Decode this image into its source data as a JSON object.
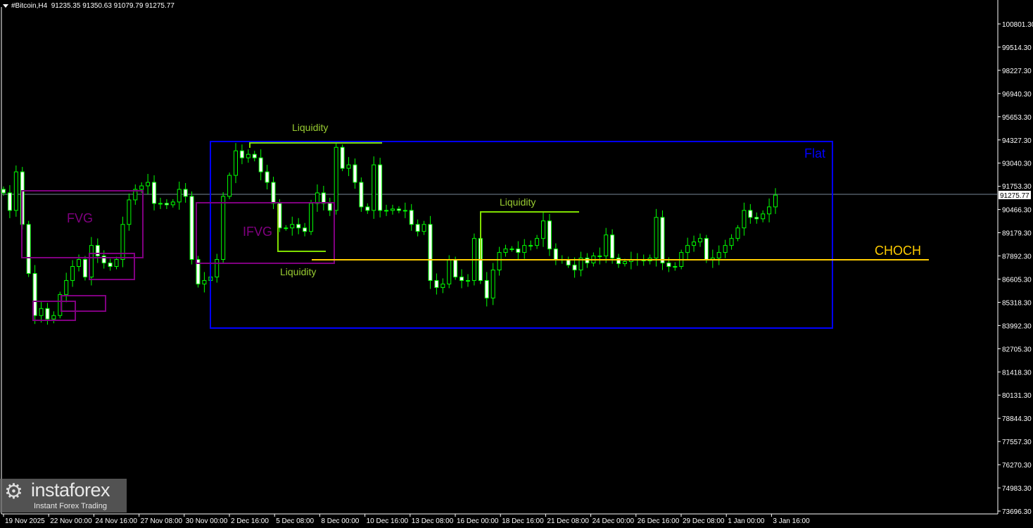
{
  "header": {
    "symbol": "#Bitcoin,H4",
    "ohlc": "91235.35 91350.63 91079.79 91275.77"
  },
  "logo": {
    "name": "instaforex",
    "tagline": "Instant Forex Trading"
  },
  "colors": {
    "background": "#000000",
    "candle": "#00ff00",
    "flat_box": "#0000ff",
    "fvg": "#800080",
    "liquidity": "#7fdf00",
    "choch": "#ffcc00",
    "price_line": "#778899",
    "axis": "#ffffff"
  },
  "annotations": {
    "flat": "Flat",
    "fvg": "FVG",
    "ifvg": "IFVG",
    "choch": "CHOCH",
    "liquidity_top": "Liquidity",
    "liquidity_low": "Liquidity",
    "liquidity_mid": "Liquidity"
  },
  "chart_data": {
    "type": "candlestick",
    "title": "#Bitcoin,H4",
    "timeframe": "H4",
    "last_price": "91275.77",
    "ylim": [
      73696.3,
      100801.3
    ],
    "grid": false,
    "y_ticks": [
      "100801.30",
      "99514.30",
      "98227.30",
      "96940.30",
      "95653.30",
      "94327.30",
      "93040.30",
      "91753.30",
      "90466.30",
      "89179.30",
      "87892.30",
      "86605.30",
      "85318.30",
      "83992.30",
      "82705.30",
      "81418.30",
      "80131.30",
      "78844.30",
      "77557.30",
      "76270.30",
      "74983.30",
      "73696.30"
    ],
    "x_ticks": [
      "19 Nov 2025",
      "22 Nov 00:00",
      "24 Nov 16:00",
      "27 Nov 08:00",
      "30 Nov 00:00",
      "2 Dec 16:00",
      "5 Dec 08:00",
      "8 Dec 00:00",
      "10 Dec 16:00",
      "13 Dec 08:00",
      "16 Dec 00:00",
      "18 Dec 16:00",
      "21 Dec 08:00",
      "24 Dec 00:00",
      "26 Dec 16:00",
      "29 Dec 08:00",
      "1 Jan 00:00",
      "3 Jan 16:00"
    ],
    "open": 91600,
    "closes": [
      91402,
      90427,
      92572,
      89647,
      86917,
      84577,
      84967,
      84382,
      84577,
      85747,
      86527,
      87307,
      87697,
      86722,
      88477,
      87892,
      87502,
      87307,
      87697,
      89647,
      91012,
      91597,
      91792,
      91987,
      90817,
      90817,
      90739,
      90895,
      91597,
      91207,
      87697,
      86332,
      86527,
      86722,
      87697,
      91207,
      92377,
      93742,
      93352,
      93547,
      93352,
      92572,
      91987,
      90817,
      89452,
      89452,
      89647,
      89452,
      89257,
      90817,
      91402,
      90817,
      90427,
      93937,
      92767,
      92962,
      91987,
      90622,
      90427,
      92962,
      90427,
      90427,
      90505,
      90427,
      90427,
      89647,
      89257,
      89647,
      86527,
      86137,
      86332,
      87697,
      86722,
      86527,
      86527,
      88867,
      86527,
      85552,
      87112,
      88087,
      88282,
      88282,
      88087,
      88477,
      88477,
      88867,
      89842,
      88282,
      87697,
      87697,
      87385,
      87112,
      87775,
      87502,
      87892,
      87892,
      89062,
      87775,
      87463,
      87580,
      87697,
      87697,
      87619,
      87775,
      90037,
      87502,
      87307,
      87307,
      88087,
      88477,
      88672,
      88867,
      87697,
      87775,
      88087,
      88477,
      88867,
      89452,
      90427,
      90037,
      89959,
      90232,
      90622,
      91275.77
    ],
    "levels": {
      "choch": 87800,
      "flat_top": 94250,
      "flat_bottom": 84000
    }
  }
}
